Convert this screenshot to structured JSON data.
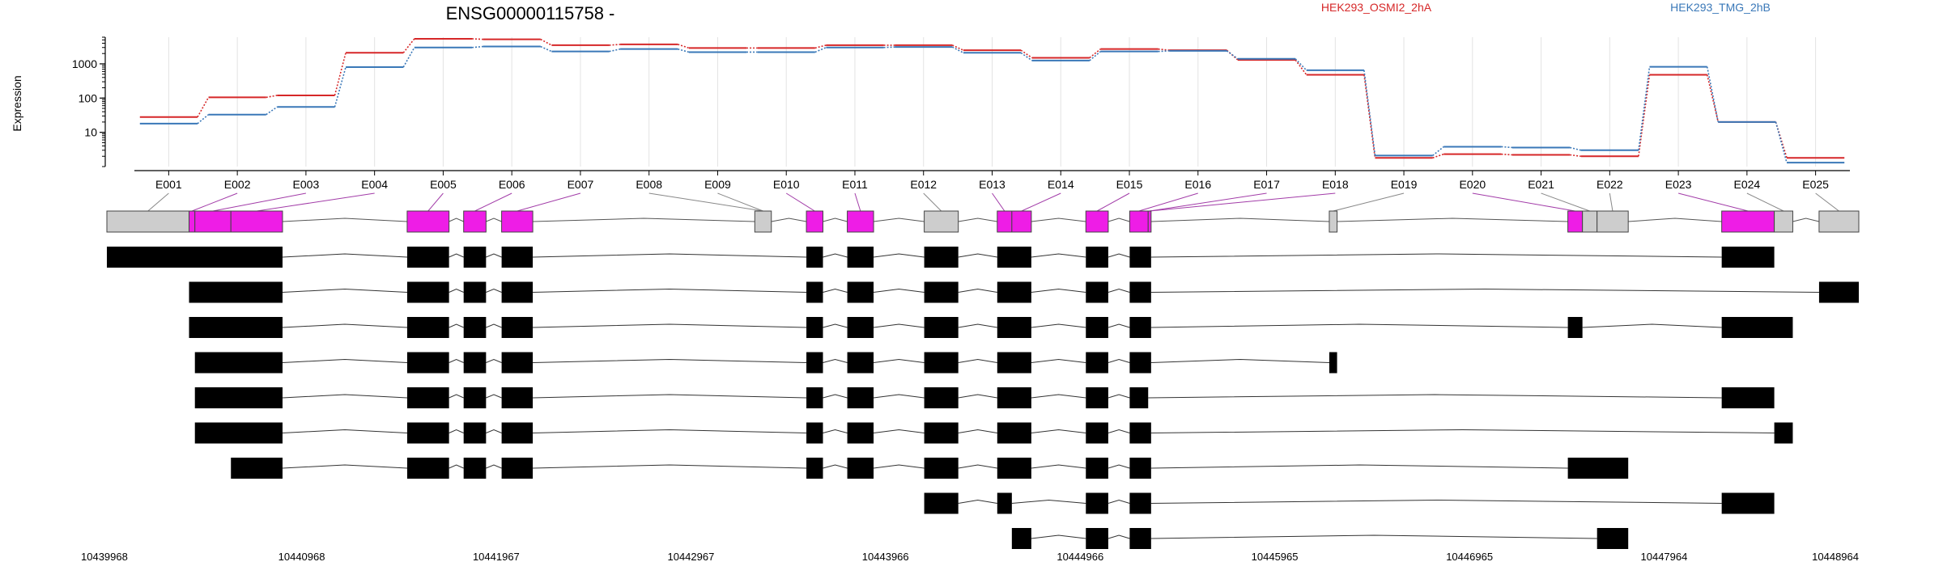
{
  "chart_data": {
    "type": "line",
    "title": "ENSG00000115758 -",
    "ylabel": "Expression",
    "y_scale": "log",
    "y_ticks": [
      "10",
      "100",
      "1000"
    ],
    "ylim": [
      1,
      6000
    ],
    "grid": true,
    "legend_placement": "top-right",
    "categories": [
      "E001",
      "E002",
      "E003",
      "E004",
      "E005",
      "E006",
      "E007",
      "E008",
      "E009",
      "E010",
      "E011",
      "E012",
      "E013",
      "E014",
      "E015",
      "E016",
      "E017",
      "E018",
      "E019",
      "E020",
      "E021",
      "E022",
      "E023",
      "E024",
      "E025"
    ],
    "series": [
      {
        "name": "HEK293_OSMI2_2hA",
        "color": "#d62728",
        "values": [
          28,
          105,
          120,
          2100,
          5400,
          5200,
          3500,
          3700,
          2900,
          2900,
          3500,
          3500,
          2500,
          1500,
          2700,
          2500,
          1300,
          480,
          1.8,
          2.3,
          2.2,
          2.0,
          480,
          20,
          1.8
        ]
      },
      {
        "name": "HEK293_TMG_2hB",
        "color": "#3a78b8",
        "values": [
          18,
          33,
          55,
          800,
          3000,
          3200,
          2300,
          2700,
          2200,
          2200,
          3000,
          3100,
          2100,
          1250,
          2300,
          2400,
          1400,
          650,
          2.1,
          3.8,
          3.6,
          3.0,
          820,
          20,
          1.3
        ]
      }
    ],
    "genome_ticks": [
      "10439968",
      "10440968",
      "10441967",
      "10442967",
      "10443966",
      "10444966",
      "10445965",
      "10446965",
      "10447964",
      "10448964"
    ],
    "exons": [
      {
        "id": "E001",
        "start": 10439968,
        "end": 10440390,
        "type": "noncoding"
      },
      {
        "id": "E002",
        "start": 10440390,
        "end": 10440420,
        "type": "coding"
      },
      {
        "id": "E003",
        "start": 10440420,
        "end": 10440605,
        "type": "coding"
      },
      {
        "id": "E004",
        "start": 10440605,
        "end": 10440870,
        "type": "coding"
      },
      {
        "id": "E005",
        "start": 10441510,
        "end": 10441725,
        "type": "coding"
      },
      {
        "id": "E006",
        "start": 10441800,
        "end": 10441915,
        "type": "coding"
      },
      {
        "id": "E007",
        "start": 10441995,
        "end": 10442155,
        "type": "coding"
      },
      {
        "id": "E008",
        "start": 10443295,
        "end": 10443380,
        "type": "noncoding"
      },
      {
        "id": "E009",
        "start": 10443560,
        "end": 10443645,
        "type": "coding"
      },
      {
        "id": "E010",
        "start": 10443770,
        "end": 10443905,
        "type": "coding"
      },
      {
        "id": "E011",
        "start": 10444165,
        "end": 10444340,
        "type": "noncoding"
      },
      {
        "id": "E012",
        "start": 10444540,
        "end": 10444615,
        "type": "coding"
      },
      {
        "id": "E013",
        "start": 10444615,
        "end": 10444715,
        "type": "coding"
      },
      {
        "id": "E014",
        "start": 10444995,
        "end": 10445110,
        "type": "coding"
      },
      {
        "id": "E015",
        "start": 10445220,
        "end": 10445315,
        "type": "coding"
      },
      {
        "id": "E016",
        "start": 10445315,
        "end": 10445330,
        "type": "coding"
      },
      {
        "id": "E017",
        "start": 10446245,
        "end": 10446285,
        "type": "noncoding"
      },
      {
        "id": "E018",
        "start": 10447470,
        "end": 10447545,
        "type": "coding"
      },
      {
        "id": "E019",
        "start": 10447545,
        "end": 10447620,
        "type": "noncoding"
      },
      {
        "id": "E020",
        "start": 10447620,
        "end": 10447780,
        "type": "noncoding"
      },
      {
        "id": "E021",
        "start": 10448260,
        "end": 10448530,
        "type": "coding"
      },
      {
        "id": "E022",
        "start": 10448530,
        "end": 10448625,
        "type": "noncoding"
      },
      {
        "id": "E023",
        "start": 10448760,
        "end": 10448964,
        "type": "noncoding"
      }
    ],
    "connections": [
      {
        "label": "E001",
        "to": "E001"
      },
      {
        "label": "E002",
        "to": "E002"
      },
      {
        "label": "E003",
        "to": "E003"
      },
      {
        "label": "E004",
        "to": "E004"
      },
      {
        "label": "E005",
        "to": "E005"
      },
      {
        "label": "E006",
        "to": "E006"
      },
      {
        "label": "E007",
        "to": "E007"
      },
      {
        "label": "E008",
        "to": "E008"
      },
      {
        "label": "E009",
        "to": "E008"
      },
      {
        "label": "E010",
        "to": "E009"
      },
      {
        "label": "E011",
        "to": "E010"
      },
      {
        "label": "E012",
        "to": "E011"
      },
      {
        "label": "E013",
        "to": "E012"
      },
      {
        "label": "E014",
        "to": "E013"
      },
      {
        "label": "E015",
        "to": "E014"
      },
      {
        "label": "E016",
        "to": "E015"
      },
      {
        "label": "E017",
        "to": "E016"
      },
      {
        "label": "E018",
        "to": "E016"
      },
      {
        "label": "E019",
        "to": "E017"
      },
      {
        "label": "E020",
        "to": "E018"
      },
      {
        "label": "E021",
        "to": "E019"
      },
      {
        "label": "E022",
        "to": "E020"
      },
      {
        "label": "E023",
        "to": "E021"
      },
      {
        "label": "E024",
        "to": "E022"
      },
      {
        "label": "E025",
        "to": "E023"
      }
    ],
    "transcripts": [
      [
        [
          10439968,
          10440870
        ],
        [
          10441510,
          10441725
        ],
        [
          10441800,
          10441915
        ],
        [
          10441995,
          10442155
        ],
        [
          10443560,
          10443645
        ],
        [
          10443770,
          10443905
        ],
        [
          10444165,
          10444340
        ],
        [
          10444540,
          10444715
        ],
        [
          10444995,
          10445110
        ],
        [
          10445220,
          10445330
        ],
        [
          10448260,
          10448530
        ]
      ],
      [
        [
          10440390,
          10440870
        ],
        [
          10441510,
          10441725
        ],
        [
          10441800,
          10441915
        ],
        [
          10441995,
          10442155
        ],
        [
          10443560,
          10443645
        ],
        [
          10443770,
          10443905
        ],
        [
          10444165,
          10444340
        ],
        [
          10444540,
          10444715
        ],
        [
          10444995,
          10445110
        ],
        [
          10445220,
          10445330
        ],
        [
          10448760,
          10448964
        ]
      ],
      [
        [
          10440390,
          10440870
        ],
        [
          10441510,
          10441725
        ],
        [
          10441800,
          10441915
        ],
        [
          10441995,
          10442155
        ],
        [
          10443560,
          10443645
        ],
        [
          10443770,
          10443905
        ],
        [
          10444165,
          10444340
        ],
        [
          10444540,
          10444715
        ],
        [
          10444995,
          10445110
        ],
        [
          10445220,
          10445330
        ],
        [
          10447470,
          10447545
        ],
        [
          10448260,
          10448625
        ]
      ],
      [
        [
          10440420,
          10440870
        ],
        [
          10441510,
          10441725
        ],
        [
          10441800,
          10441915
        ],
        [
          10441995,
          10442155
        ],
        [
          10443560,
          10443645
        ],
        [
          10443770,
          10443905
        ],
        [
          10444165,
          10444340
        ],
        [
          10444540,
          10444715
        ],
        [
          10444995,
          10445110
        ],
        [
          10445220,
          10445330
        ],
        [
          10446245,
          10446285
        ]
      ],
      [
        [
          10440420,
          10440870
        ],
        [
          10441510,
          10441725
        ],
        [
          10441800,
          10441915
        ],
        [
          10441995,
          10442155
        ],
        [
          10443560,
          10443645
        ],
        [
          10443770,
          10443905
        ],
        [
          10444165,
          10444340
        ],
        [
          10444540,
          10444715
        ],
        [
          10444995,
          10445110
        ],
        [
          10445220,
          10445315
        ],
        [
          10448260,
          10448530
        ]
      ],
      [
        [
          10440420,
          10440870
        ],
        [
          10441510,
          10441725
        ],
        [
          10441800,
          10441915
        ],
        [
          10441995,
          10442155
        ],
        [
          10443560,
          10443645
        ],
        [
          10443770,
          10443905
        ],
        [
          10444165,
          10444340
        ],
        [
          10444540,
          10444715
        ],
        [
          10444995,
          10445110
        ],
        [
          10445220,
          10445330
        ],
        [
          10448530,
          10448625
        ]
      ],
      [
        [
          10440605,
          10440870
        ],
        [
          10441510,
          10441725
        ],
        [
          10441800,
          10441915
        ],
        [
          10441995,
          10442155
        ],
        [
          10443560,
          10443645
        ],
        [
          10443770,
          10443905
        ],
        [
          10444165,
          10444340
        ],
        [
          10444540,
          10444715
        ],
        [
          10444995,
          10445110
        ],
        [
          10445220,
          10445330
        ],
        [
          10447470,
          10447780
        ]
      ],
      [
        [
          10444165,
          10444340
        ],
        [
          10444540,
          10444615
        ],
        [
          10444995,
          10445110
        ],
        [
          10445220,
          10445330
        ],
        [
          10448260,
          10448530
        ]
      ],
      [
        [
          10444615,
          10444715
        ],
        [
          10444995,
          10445110
        ],
        [
          10445220,
          10445330
        ],
        [
          10447620,
          10447780
        ]
      ]
    ]
  }
}
